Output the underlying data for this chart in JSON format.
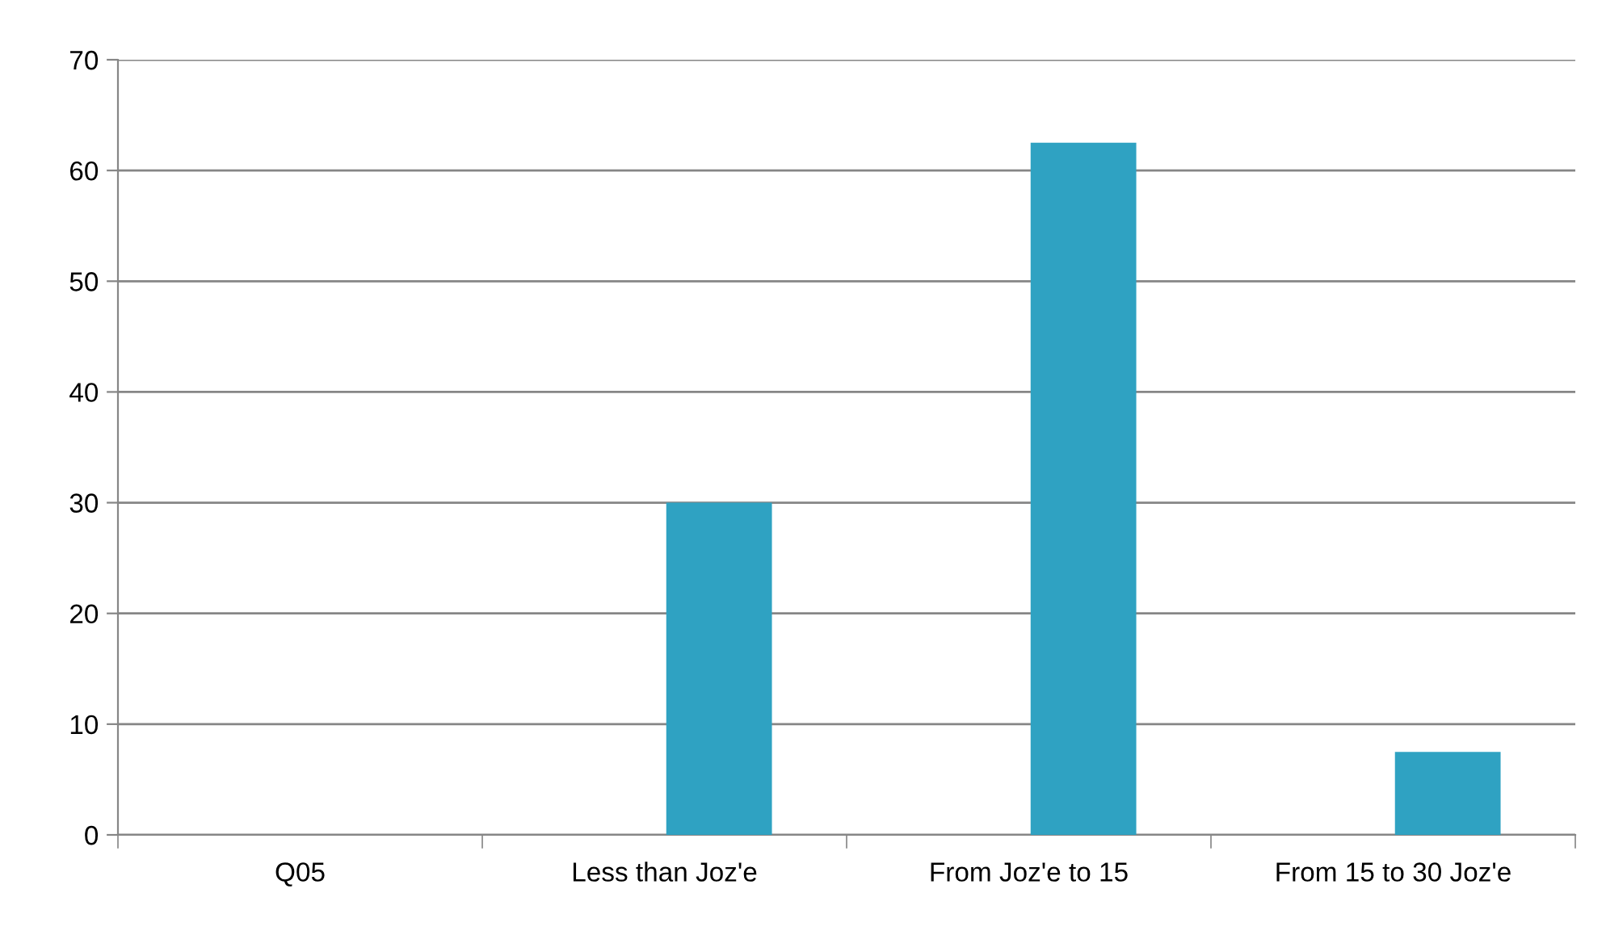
{
  "chart_data": {
    "type": "bar",
    "categories": [
      "Q05",
      "Less than Joz'e",
      "From Joz'e to 15",
      "From 15 to 30 Joz'e"
    ],
    "values": [
      null,
      30,
      62.5,
      7.5
    ],
    "color": "#2fa2c2",
    "ylim": [
      0,
      70
    ],
    "yticks": [
      0,
      10,
      20,
      30,
      40,
      50,
      60,
      70
    ],
    "grid": "y",
    "legend": false
  }
}
